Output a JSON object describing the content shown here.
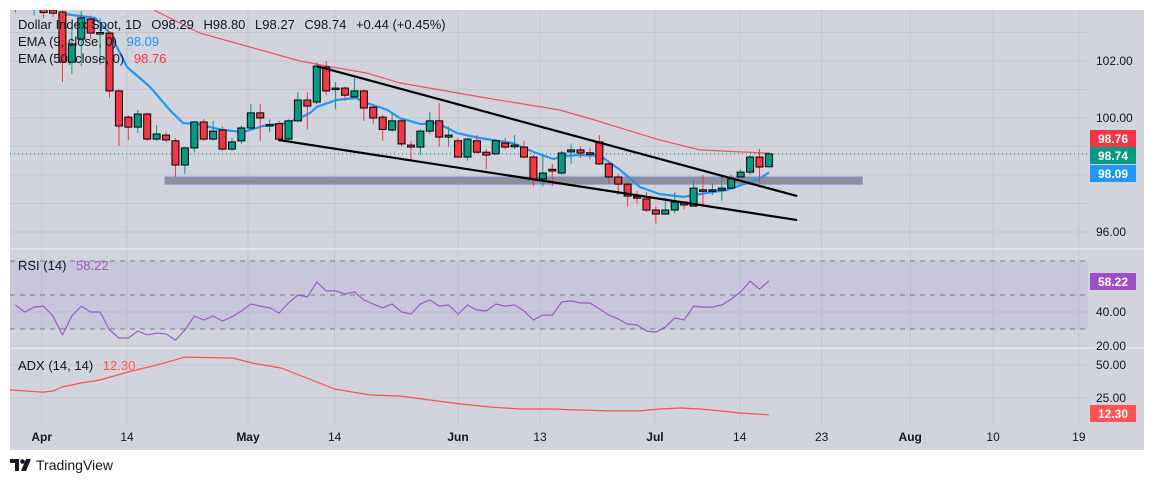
{
  "legend": {
    "symbol": "Dollar Index Spot, 1D",
    "open": "O98.29",
    "high": "H98.80",
    "low": "L98.27",
    "close": "C98.74",
    "change": "+0.44 (+0.45%)",
    "ema9_label": "EMA (9, close, 0)",
    "ema9_value": "98.09",
    "ema50_label": "EMA (50, close, 0)",
    "ema50_value": "98.76",
    "rsi_label": "RSI (14)",
    "rsi_value": "58.22",
    "adx_label": "ADX (14, 14)",
    "adx_value": "12.30"
  },
  "branding": {
    "name": "TradingView"
  },
  "colors": {
    "up": "#089981",
    "down": "#f23645",
    "ema9": "#2196f3",
    "ema50": "#f23645",
    "rsi": "#9c5ac7",
    "adx": "#ff5252",
    "background": "#d1d4dc"
  },
  "chart_data": {
    "type": "candlestick",
    "title": "Dollar Index Spot, 1D",
    "price_axis": {
      "ticks": [
        "102.00",
        "100.00",
        "96.00"
      ],
      "tick_values": [
        102,
        100,
        96
      ],
      "range": [
        95.5,
        104.5
      ]
    },
    "time_axis": [
      {
        "label": "Apr",
        "index": -1.2,
        "bold": true
      },
      {
        "label": "14",
        "index": 7.86,
        "bold": false
      },
      {
        "label": "May",
        "index": 20.7,
        "bold": true
      },
      {
        "label": "14",
        "index": 29.9,
        "bold": false
      },
      {
        "label": "Jun",
        "index": 43.0,
        "bold": true
      },
      {
        "label": "13",
        "index": 51.7,
        "bold": false
      },
      {
        "label": "Jul",
        "index": 63.9,
        "bold": true
      },
      {
        "label": "14",
        "index": 72.9,
        "bold": false
      },
      {
        "label": "23",
        "index": 81.6,
        "bold": false
      },
      {
        "label": "Aug",
        "index": 91.0,
        "bold": true
      },
      {
        "label": "10",
        "index": 99.8,
        "bold": false
      },
      {
        "label": "19",
        "index": 108.9,
        "bold": false
      }
    ],
    "candles_start_index": -4,
    "candles_ohlc": [
      [
        103.9,
        104.4,
        103.7,
        104.2
      ],
      [
        104.2,
        104.5,
        103.8,
        103.9
      ],
      [
        103.9,
        104.3,
        103.6,
        104.1
      ],
      [
        104.1,
        104.3,
        103.5,
        103.7
      ],
      [
        103.79,
        103.9,
        103.55,
        103.68
      ],
      [
        103.72,
        103.85,
        101.26,
        101.96
      ],
      [
        101.96,
        103.19,
        101.54,
        102.6
      ],
      [
        102.77,
        103.75,
        101.82,
        103.51
      ],
      [
        103.47,
        103.6,
        102.77,
        102.98
      ],
      [
        102.98,
        103.5,
        101.86,
        103.0
      ],
      [
        102.98,
        103.05,
        100.7,
        100.95
      ],
      [
        100.95,
        101.0,
        99.02,
        99.72
      ],
      [
        100.03,
        100.1,
        99.23,
        99.68
      ],
      [
        99.68,
        100.28,
        99.47,
        100.14
      ],
      [
        100.14,
        100.2,
        99.2,
        99.26
      ],
      [
        99.26,
        99.75,
        99.2,
        99.44
      ],
      [
        99.4,
        99.5,
        99.15,
        99.23
      ],
      [
        99.2,
        99.3,
        97.93,
        98.35
      ],
      [
        98.35,
        98.98,
        98.04,
        98.95
      ],
      [
        98.95,
        99.9,
        98.8,
        99.86
      ],
      [
        99.86,
        99.96,
        99.2,
        99.26
      ],
      [
        99.26,
        99.9,
        99.2,
        99.54
      ],
      [
        99.58,
        99.7,
        98.85,
        98.91
      ],
      [
        98.91,
        99.3,
        98.85,
        99.16
      ],
      [
        99.2,
        99.75,
        99.1,
        99.65
      ],
      [
        99.65,
        100.5,
        99.6,
        100.18
      ],
      [
        100.18,
        100.5,
        99.2,
        100.0
      ],
      [
        99.75,
        99.95,
        99.5,
        99.77
      ],
      [
        99.8,
        99.9,
        99.2,
        99.26
      ],
      [
        99.26,
        99.95,
        99.15,
        99.9
      ],
      [
        99.9,
        100.9,
        99.85,
        100.63
      ],
      [
        100.63,
        100.9,
        99.6,
        100.42
      ],
      [
        100.56,
        101.96,
        100.49,
        101.82
      ],
      [
        101.79,
        102.0,
        100.8,
        100.95
      ],
      [
        101.0,
        101.26,
        100.3,
        101.05
      ],
      [
        101.05,
        101.1,
        100.6,
        100.8
      ],
      [
        100.74,
        101.4,
        100.7,
        100.95
      ],
      [
        100.95,
        101.0,
        99.9,
        100.35
      ],
      [
        100.38,
        100.45,
        99.8,
        100.0
      ],
      [
        100.03,
        100.1,
        99.2,
        99.6
      ],
      [
        99.58,
        100.2,
        99.5,
        99.9
      ],
      [
        99.9,
        99.95,
        99.0,
        99.09
      ],
      [
        99.05,
        99.2,
        98.5,
        98.98
      ],
      [
        98.98,
        99.6,
        98.7,
        99.54
      ],
      [
        99.54,
        100.2,
        99.45,
        99.9
      ],
      [
        99.9,
        100.53,
        99.0,
        99.33
      ],
      [
        99.33,
        99.7,
        99.0,
        99.4
      ],
      [
        99.2,
        99.3,
        98.6,
        98.63
      ],
      [
        98.63,
        99.3,
        98.5,
        99.26
      ],
      [
        99.2,
        99.4,
        98.75,
        98.8
      ],
      [
        98.8,
        98.9,
        98.2,
        98.7
      ],
      [
        98.74,
        99.25,
        98.7,
        99.2
      ],
      [
        99.12,
        99.3,
        98.9,
        98.98
      ],
      [
        98.99,
        99.4,
        98.9,
        99.05
      ],
      [
        98.98,
        99.2,
        98.6,
        98.63
      ],
      [
        98.63,
        98.7,
        97.6,
        97.86
      ],
      [
        97.86,
        98.7,
        97.6,
        98.07
      ],
      [
        98.2,
        98.4,
        97.6,
        98.14
      ],
      [
        98.07,
        98.85,
        98.0,
        98.77
      ],
      [
        98.81,
        99.1,
        98.4,
        98.88
      ],
      [
        98.88,
        99.0,
        98.6,
        98.77
      ],
      [
        98.78,
        98.95,
        98.55,
        98.77
      ],
      [
        99.16,
        99.4,
        98.35,
        98.39
      ],
      [
        98.39,
        98.5,
        97.7,
        97.93
      ],
      [
        97.93,
        98.05,
        97.3,
        97.68
      ],
      [
        97.68,
        97.75,
        96.9,
        97.26
      ],
      [
        97.24,
        97.44,
        97.0,
        97.22
      ],
      [
        97.16,
        97.4,
        96.7,
        96.77
      ],
      [
        96.77,
        96.9,
        96.3,
        96.63
      ],
      [
        96.63,
        97.2,
        96.6,
        96.77
      ],
      [
        96.77,
        97.4,
        96.65,
        97.05
      ],
      [
        97.05,
        97.1,
        96.8,
        96.95
      ],
      [
        96.91,
        97.8,
        96.88,
        97.54
      ],
      [
        97.48,
        98.0,
        96.95,
        97.47
      ],
      [
        97.47,
        97.7,
        97.3,
        97.48
      ],
      [
        97.47,
        98.0,
        97.1,
        97.54
      ],
      [
        97.54,
        98.0,
        97.5,
        97.86
      ],
      [
        97.93,
        98.2,
        97.9,
        98.1
      ],
      [
        98.1,
        98.7,
        98.0,
        98.63
      ],
      [
        98.63,
        98.91,
        97.72,
        98.28
      ],
      [
        98.29,
        98.8,
        98.27,
        98.74
      ]
    ],
    "ema9": [
      [
        1.27,
        103.65
      ],
      [
        4.46,
        103.51
      ],
      [
        6.05,
        102.98
      ],
      [
        7.86,
        101.79
      ],
      [
        10.3,
        101.09
      ],
      [
        12.4,
        100.28
      ],
      [
        13.8,
        99.82
      ],
      [
        15.3,
        99.79
      ],
      [
        18.0,
        99.58
      ],
      [
        20.2,
        99.51
      ],
      [
        22.3,
        99.72
      ],
      [
        24.8,
        99.82
      ],
      [
        26.5,
        100.04
      ],
      [
        27.3,
        100.18
      ],
      [
        28.0,
        100.39
      ],
      [
        30.1,
        100.63
      ],
      [
        32.1,
        100.7
      ],
      [
        33.3,
        100.53
      ],
      [
        35.5,
        100.28
      ],
      [
        36.8,
        100.0
      ],
      [
        39.0,
        99.79
      ],
      [
        40.8,
        99.82
      ],
      [
        42.9,
        99.47
      ],
      [
        45.3,
        99.3
      ],
      [
        48.8,
        99.12
      ],
      [
        51.0,
        98.81
      ],
      [
        53.1,
        98.56
      ],
      [
        54.6,
        98.67
      ],
      [
        55.9,
        98.7
      ],
      [
        58.1,
        98.67
      ],
      [
        60.2,
        98.18
      ],
      [
        62.3,
        97.58
      ],
      [
        64.4,
        97.33
      ],
      [
        66.9,
        97.23
      ],
      [
        69.4,
        97.37
      ],
      [
        71.5,
        97.47
      ],
      [
        73.7,
        97.72
      ],
      [
        75.1,
        97.89
      ],
      [
        76,
        98.09
      ]
    ],
    "ema50": [
      [
        9.2,
        104.14
      ],
      [
        10.3,
        103.86
      ],
      [
        15.6,
        102.98
      ],
      [
        20.9,
        102.49
      ],
      [
        26.2,
        102.0
      ],
      [
        29.1,
        101.82
      ],
      [
        33.3,
        101.58
      ],
      [
        36.8,
        101.23
      ],
      [
        45.3,
        100.74
      ],
      [
        53.8,
        100.28
      ],
      [
        57.5,
        99.93
      ],
      [
        61.3,
        99.54
      ],
      [
        64.4,
        99.23
      ],
      [
        68.7,
        98.88
      ],
      [
        72.9,
        98.81
      ],
      [
        76,
        98.77
      ]
    ],
    "trendlines": [
      {
        "name": "upper-trendline",
        "from": [
          28.0,
          101.82
        ],
        "to": [
          79.0,
          97.26
        ]
      },
      {
        "name": "lower-trendline",
        "from": [
          23.9,
          99.23
        ],
        "to": [
          79.0,
          96.42
        ]
      }
    ],
    "support_zone": {
      "from_index": 11.9,
      "to_index": 85.9,
      "top": 97.93,
      "bottom": 97.68
    },
    "last_price": 98.74,
    "price_badges": [
      {
        "label": "98.76",
        "color": "#f23645"
      },
      {
        "label": "98.74",
        "color": "#089981"
      },
      {
        "label": "98.09",
        "color": "#2196f3"
      }
    ],
    "rsi": {
      "ticks": [
        "40.00",
        "20.00"
      ],
      "tick_values": [
        40,
        20
      ],
      "levels": [
        70,
        50,
        30
      ],
      "badge": "58.22",
      "start_index": -4,
      "values": [
        44.1,
        40.0,
        42.9,
        43.5,
        37.6,
        26.5,
        37.6,
        43.5,
        40.0,
        40.0,
        29.4,
        24.7,
        24.7,
        28.8,
        26.5,
        27.6,
        27.1,
        23.5,
        29.4,
        37.6,
        35.3,
        37.6,
        34.7,
        37.1,
        40.6,
        44.7,
        43.5,
        42.4,
        39.4,
        45.3,
        50.0,
        48.8,
        57.6,
        52.4,
        52.4,
        50.6,
        51.8,
        47.1,
        44.7,
        42.4,
        44.7,
        40.0,
        38.8,
        44.7,
        47.1,
        43.5,
        44.1,
        38.8,
        44.1,
        41.2,
        40.6,
        44.7,
        43.5,
        44.1,
        40.6,
        35.3,
        38.2,
        38.2,
        45.9,
        46.5,
        45.3,
        45.3,
        41.8,
        38.2,
        35.9,
        32.9,
        32.4,
        28.8,
        28.2,
        31.2,
        36.5,
        35.3,
        43.5,
        42.9,
        42.9,
        44.1,
        47.6,
        51.8,
        58.2,
        53.5,
        58.22
      ]
    },
    "adx": {
      "ticks": [
        "50.00",
        "25.00"
      ],
      "tick_values": [
        50,
        25
      ],
      "badge": "12.30",
      "points": [
        [
          -4.56,
          31.1
        ],
        [
          -1.06,
          29.5
        ],
        [
          0,
          30.3
        ],
        [
          0.96,
          33.3
        ],
        [
          2.97,
          36.4
        ],
        [
          4.99,
          38.6
        ],
        [
          7.96,
          44.7
        ],
        [
          11.04,
          50.0
        ],
        [
          14.01,
          56.0
        ],
        [
          19.11,
          55.3
        ],
        [
          21.13,
          51.5
        ],
        [
          24.2,
          47.7
        ],
        [
          27.2,
          39.4
        ],
        [
          29.9,
          31.8
        ],
        [
          33.7,
          27.3
        ],
        [
          36.8,
          26.5
        ],
        [
          40.0,
          23.5
        ],
        [
          43.2,
          20.5
        ],
        [
          46.4,
          18.2
        ],
        [
          49.6,
          16.7
        ],
        [
          52.8,
          16.7
        ],
        [
          55.9,
          15.9
        ],
        [
          59.1,
          15.2
        ],
        [
          62.3,
          15.2
        ],
        [
          64.4,
          16.7
        ],
        [
          66.6,
          17.4
        ],
        [
          68.7,
          16.7
        ],
        [
          70.8,
          15.2
        ],
        [
          72.9,
          13.6
        ],
        [
          76,
          12.3
        ]
      ]
    }
  }
}
